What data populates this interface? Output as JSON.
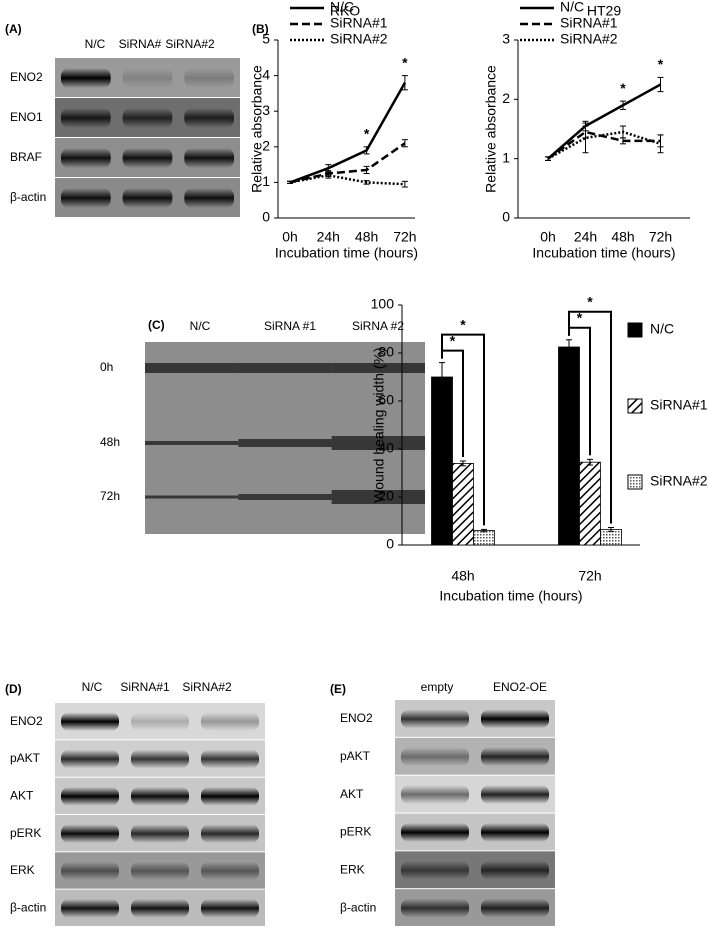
{
  "panel_labels": [
    "(A)",
    "(B)",
    "(C)",
    "(D)",
    "(E)"
  ],
  "blots": [
    {
      "columns": [
        "N/C",
        "SiRNA#",
        "SiRNA#2"
      ],
      "rows": [
        "ENO2",
        "ENO1",
        "BRAF",
        "β-actin"
      ]
    },
    {
      "columns": [
        "N/C",
        "SiRNA#1",
        "SiRNA#2"
      ],
      "rows": [
        "ENO2",
        "pAKT",
        "AKT",
        "pERK",
        "ERK",
        "β-actin"
      ]
    },
    {
      "columns": [
        "empty",
        "ENO2-OE"
      ],
      "rows": [
        "ENO2",
        "pAKT",
        "AKT",
        "pERK",
        "ERK",
        "β-actin"
      ]
    }
  ],
  "wound_images": {
    "columns": [
      "N/C",
      "SiRNA #1",
      "SiRNA #2"
    ],
    "rows": [
      "0h",
      "48h",
      "72h"
    ]
  },
  "chart_data": [
    {
      "type": "line",
      "title": "RKO",
      "x_label": "Incubation time (hours)",
      "y_label": "Relative absorbance",
      "categories": [
        "0h",
        "24h",
        "48h",
        "72h"
      ],
      "ylim": [
        0,
        5
      ],
      "yticks": [
        0,
        1,
        2,
        3,
        4,
        5
      ],
      "series": [
        {
          "name": "N/C",
          "color": "#000000",
          "dash": "solid",
          "values": [
            1,
            1.4,
            1.9,
            3.8
          ],
          "errors": [
            0.03,
            0.1,
            0.1,
            0.2
          ]
        },
        {
          "name": "SiRNA#1",
          "color": "#000000",
          "dash": "dashed",
          "values": [
            1,
            1.25,
            1.35,
            2.1
          ],
          "errors": [
            0.03,
            0.08,
            0.1,
            0.1
          ]
        },
        {
          "name": "SiRNA#2",
          "color": "#000000",
          "dash": "dotted",
          "values": [
            1,
            1.2,
            1.0,
            0.95
          ],
          "errors": [
            0.03,
            0.08,
            0.05,
            0.08
          ]
        }
      ],
      "annotations": [
        {
          "text": "*",
          "category": "48h"
        },
        {
          "text": "*",
          "category": "72h"
        }
      ]
    },
    {
      "type": "line",
      "title": "HT29",
      "x_label": "Incubation time (hours)",
      "y_label": "Relative absorbance",
      "categories": [
        "0h",
        "24h",
        "48h",
        "72h"
      ],
      "ylim": [
        0,
        3
      ],
      "yticks": [
        0,
        1,
        2,
        3
      ],
      "series": [
        {
          "name": "N/C",
          "color": "#000000",
          "dash": "solid",
          "values": [
            1,
            1.55,
            1.9,
            2.25
          ],
          "errors": [
            0.03,
            0.08,
            0.07,
            0.12
          ]
        },
        {
          "name": "SiRNA#1",
          "color": "#000000",
          "dash": "dashed",
          "values": [
            1,
            1.45,
            1.3,
            1.3
          ],
          "errors": [
            0.03,
            0.1,
            0.05,
            0.1
          ]
        },
        {
          "name": "SiRNA#2",
          "color": "#000000",
          "dash": "dotted",
          "values": [
            1,
            1.35,
            1.45,
            1.25
          ],
          "errors": [
            0.03,
            0.25,
            0.1,
            0.15
          ]
        }
      ],
      "annotations": [
        {
          "text": "*",
          "category": "48h"
        },
        {
          "text": "*",
          "category": "72h"
        }
      ]
    },
    {
      "type": "bar",
      "x_label": "Incubation time (hours)",
      "y_label": "Wound healing width (%)",
      "categories": [
        "48h",
        "72h"
      ],
      "ylim": [
        0,
        100
      ],
      "yticks": [
        0,
        20,
        40,
        60,
        80,
        100
      ],
      "series": [
        {
          "name": "N/C",
          "color": "#000000",
          "pattern": "solid",
          "values": [
            70,
            82.5
          ],
          "errors": [
            6,
            3
          ]
        },
        {
          "name": "SiRNA#1",
          "color": "#000000",
          "pattern": "hatch",
          "values": [
            34,
            34.5
          ],
          "errors": [
            1,
            1.2
          ]
        },
        {
          "name": "SiRNA#2",
          "color": "#000000",
          "pattern": "dots",
          "values": [
            6,
            6.5
          ],
          "errors": [
            0.5,
            0.8
          ]
        }
      ],
      "comparisons": [
        {
          "text": "*",
          "category": "48h",
          "series": [
            "N/C",
            "SiRNA#1"
          ]
        },
        {
          "text": "*",
          "category": "48h",
          "series": [
            "N/C",
            "SiRNA#2"
          ]
        },
        {
          "text": "*",
          "category": "72h",
          "series": [
            "N/C",
            "SiRNA#1"
          ]
        },
        {
          "text": "*",
          "category": "72h",
          "series": [
            "N/C",
            "SiRNA#2"
          ]
        }
      ]
    }
  ]
}
